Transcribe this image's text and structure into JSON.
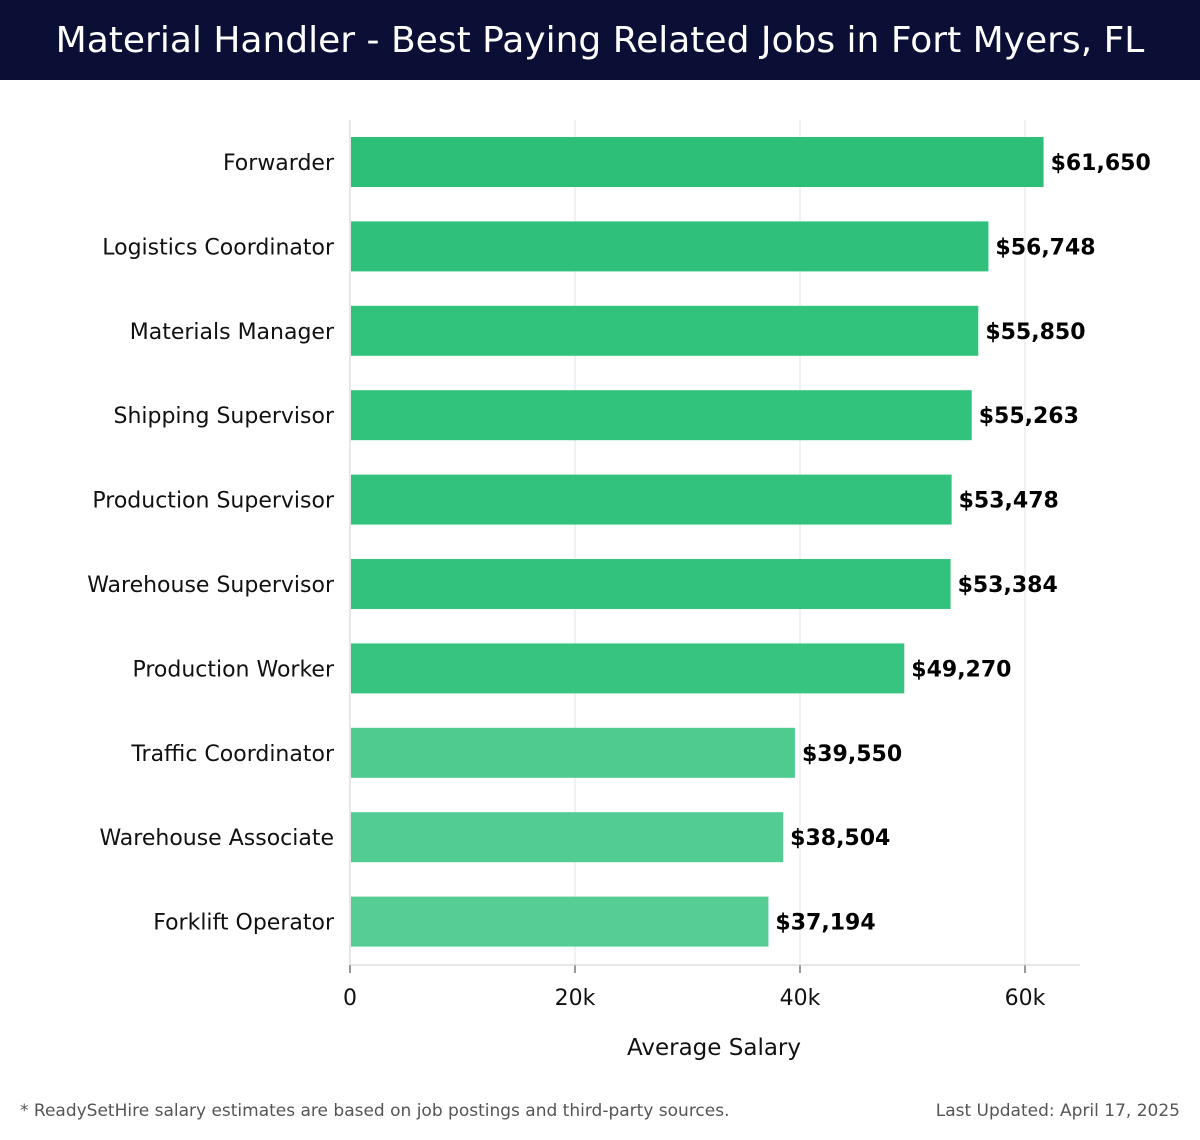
{
  "header": {
    "title": "Material Handler - Best Paying Related Jobs in Fort Myers, FL"
  },
  "chart_data": {
    "type": "bar",
    "orientation": "horizontal",
    "title": "Material Handler - Best Paying Related Jobs in Fort Myers, FL",
    "xlabel": "Average Salary",
    "ylabel": "",
    "xlim": [
      0,
      65000
    ],
    "ticks": [
      {
        "value": 0,
        "label": "0"
      },
      {
        "value": 20000,
        "label": "20k"
      },
      {
        "value": 40000,
        "label": "40k"
      },
      {
        "value": 60000,
        "label": "60k"
      }
    ],
    "grid": true,
    "categories": [
      "Forwarder",
      "Logistics Coordinator",
      "Materials Manager",
      "Shipping Supervisor",
      "Production Supervisor",
      "Warehouse Supervisor",
      "Production Worker",
      "Traffic Coordinator",
      "Warehouse Associate",
      "Forklift Operator"
    ],
    "values": [
      61650,
      56748,
      55850,
      55263,
      53478,
      53384,
      49270,
      39550,
      38504,
      37194
    ],
    "value_labels": [
      "$61,650",
      "$56,748",
      "$55,850",
      "$55,263",
      "$53,478",
      "$53,384",
      "$49,270",
      "$39,550",
      "$38,504",
      "$37,194"
    ],
    "colors": [
      "#2bbf78",
      "#2fc17b",
      "#31c27c",
      "#31c27c",
      "#32c27d",
      "#32c27d",
      "#36c480",
      "#4fcb90",
      "#52cc92",
      "#56cd95"
    ]
  },
  "footer": {
    "note": "* ReadySetHire salary estimates are based on job postings and third-party sources.",
    "updated": "Last Updated: April 17, 2025"
  }
}
